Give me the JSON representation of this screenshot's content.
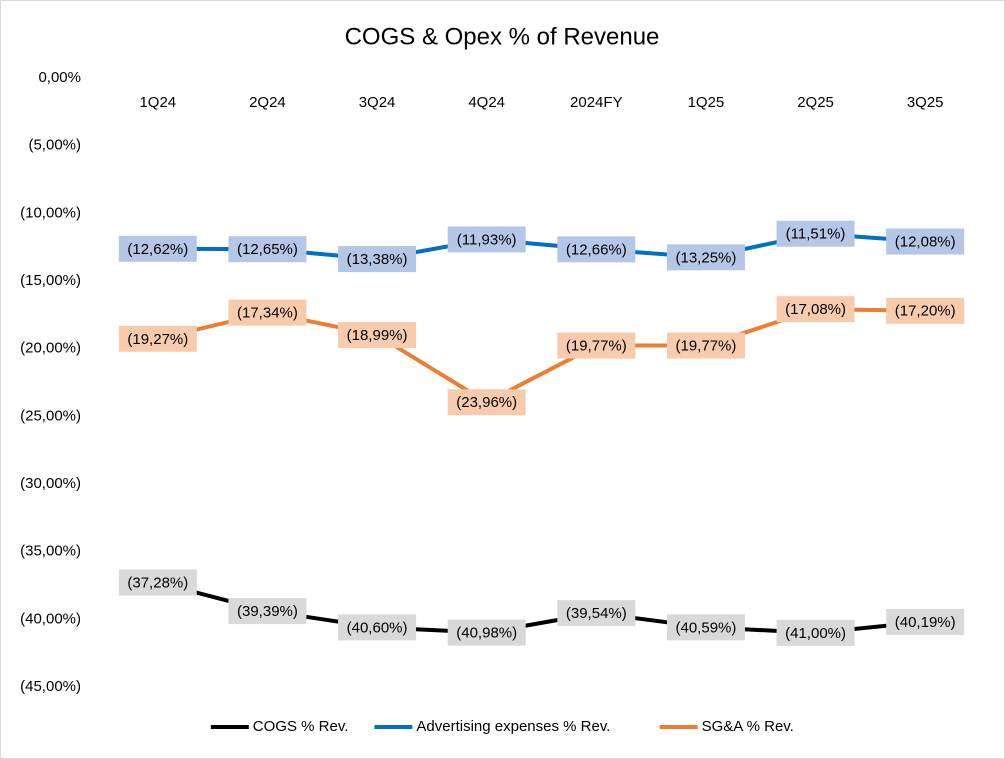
{
  "chart_data": {
    "type": "line",
    "title": "COGS & Opex % of Revenue",
    "categories": [
      "1Q24",
      "2Q24",
      "3Q24",
      "4Q24",
      "2024FY",
      "1Q25",
      "2Q25",
      "3Q25"
    ],
    "series": [
      {
        "name": "COGS % Rev.",
        "color": "#000000",
        "label_color": "#d9d9d9",
        "values": [
          -37.28,
          -39.39,
          -40.6,
          -40.98,
          -39.54,
          -40.59,
          -41.0,
          -40.19
        ],
        "value_labels": [
          "(37,28%)",
          "(39,39%)",
          "(40,60%)",
          "(40,98%)",
          "(39,54%)",
          "(40,59%)",
          "(41,00%)",
          "(40,19%)"
        ]
      },
      {
        "name": "Advertising expenses % Rev.",
        "color": "#0070c0",
        "label_color": "#b4c7e7",
        "values": [
          -12.62,
          -12.65,
          -13.38,
          -11.93,
          -12.66,
          -13.25,
          -11.51,
          -12.08
        ],
        "value_labels": [
          "(12,62%)",
          "(12,65%)",
          "(13,38%)",
          "(11,93%)",
          "(12,66%)",
          "(13,25%)",
          "(11,51%)",
          "(12,08%)"
        ]
      },
      {
        "name": "SG&A % Rev.",
        "color": "#ed7d31",
        "label_color": "#f8cbad",
        "values": [
          -19.27,
          -17.34,
          -18.99,
          -23.96,
          -19.77,
          -19.77,
          -17.08,
          -17.2
        ],
        "value_labels": [
          "(19,27%)",
          "(17,34%)",
          "(18,99%)",
          "(23,96%)",
          "(19,77%)",
          "(19,77%)",
          "(17,08%)",
          "(17,20%)"
        ]
      }
    ],
    "ylim": [
      -45,
      0
    ],
    "yticks": [
      {
        "value": 0,
        "label": "0,00%"
      },
      {
        "value": -5,
        "label": "(5,00%)"
      },
      {
        "value": -10,
        "label": "(10,00%)"
      },
      {
        "value": -15,
        "label": "(15,00%)"
      },
      {
        "value": -20,
        "label": "(20,00%)"
      },
      {
        "value": -25,
        "label": "(25,00%)"
      },
      {
        "value": -30,
        "label": "(30,00%)"
      },
      {
        "value": -35,
        "label": "(35,00%)"
      },
      {
        "value": -40,
        "label": "(40,00%)"
      },
      {
        "value": -45,
        "label": "(45,00%)"
      }
    ],
    "grid": false,
    "legend": "bottom"
  }
}
